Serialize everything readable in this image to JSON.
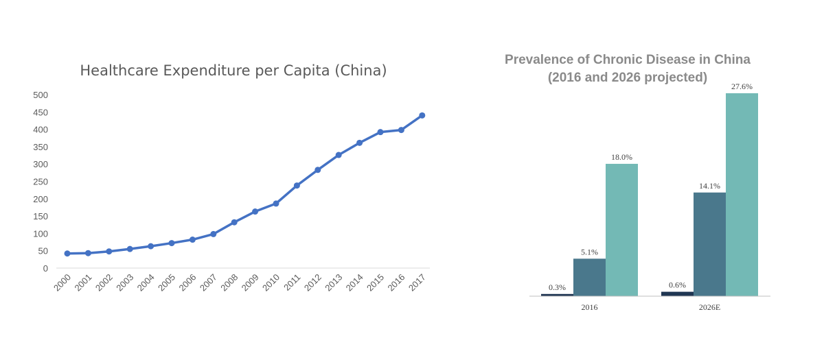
{
  "chart_data": [
    {
      "type": "line",
      "title": "Healthcare Expenditure per Capita (China)",
      "xlabel": "",
      "ylabel": "",
      "x": [
        "2000",
        "2001",
        "2002",
        "2003",
        "2004",
        "2005",
        "2006",
        "2007",
        "2008",
        "2009",
        "2010",
        "2011",
        "2012",
        "2013",
        "2014",
        "2015",
        "2016",
        "2017"
      ],
      "y_ticks": [
        "0",
        "50",
        "100",
        "150",
        "200",
        "250",
        "300",
        "350",
        "400",
        "450",
        "500"
      ],
      "ylim": [
        0,
        500
      ],
      "series": [
        {
          "values": [
            42,
            43,
            48,
            55,
            63,
            72,
            82,
            98,
            132,
            163,
            186,
            238,
            283,
            326,
            361,
            392,
            398,
            440
          ]
        }
      ],
      "grid": false,
      "colors": {
        "line": "#4472c4",
        "axis": "#d9d9d9",
        "text": "#595959"
      }
    },
    {
      "type": "bar",
      "title_line1": "Prevalence of Chronic Disease in China",
      "title_line2": "(2016 and 2026 projected)",
      "categories": [
        "2016",
        "2026E"
      ],
      "series": [
        {
          "values": [
            0.3,
            0.6
          ],
          "labels": [
            "0.3%",
            "0.6%"
          ],
          "color": "#1f3552"
        },
        {
          "values": [
            5.1,
            14.1
          ],
          "labels": [
            "5.1%",
            "14.1%"
          ],
          "color": "#4a788c"
        },
        {
          "values": [
            18.0,
            27.6
          ],
          "labels": [
            "18.0%",
            "27.6%"
          ],
          "color": "#73b9b5"
        }
      ],
      "ylim": [
        0,
        27.6
      ],
      "grid": false,
      "legend": "none"
    }
  ]
}
